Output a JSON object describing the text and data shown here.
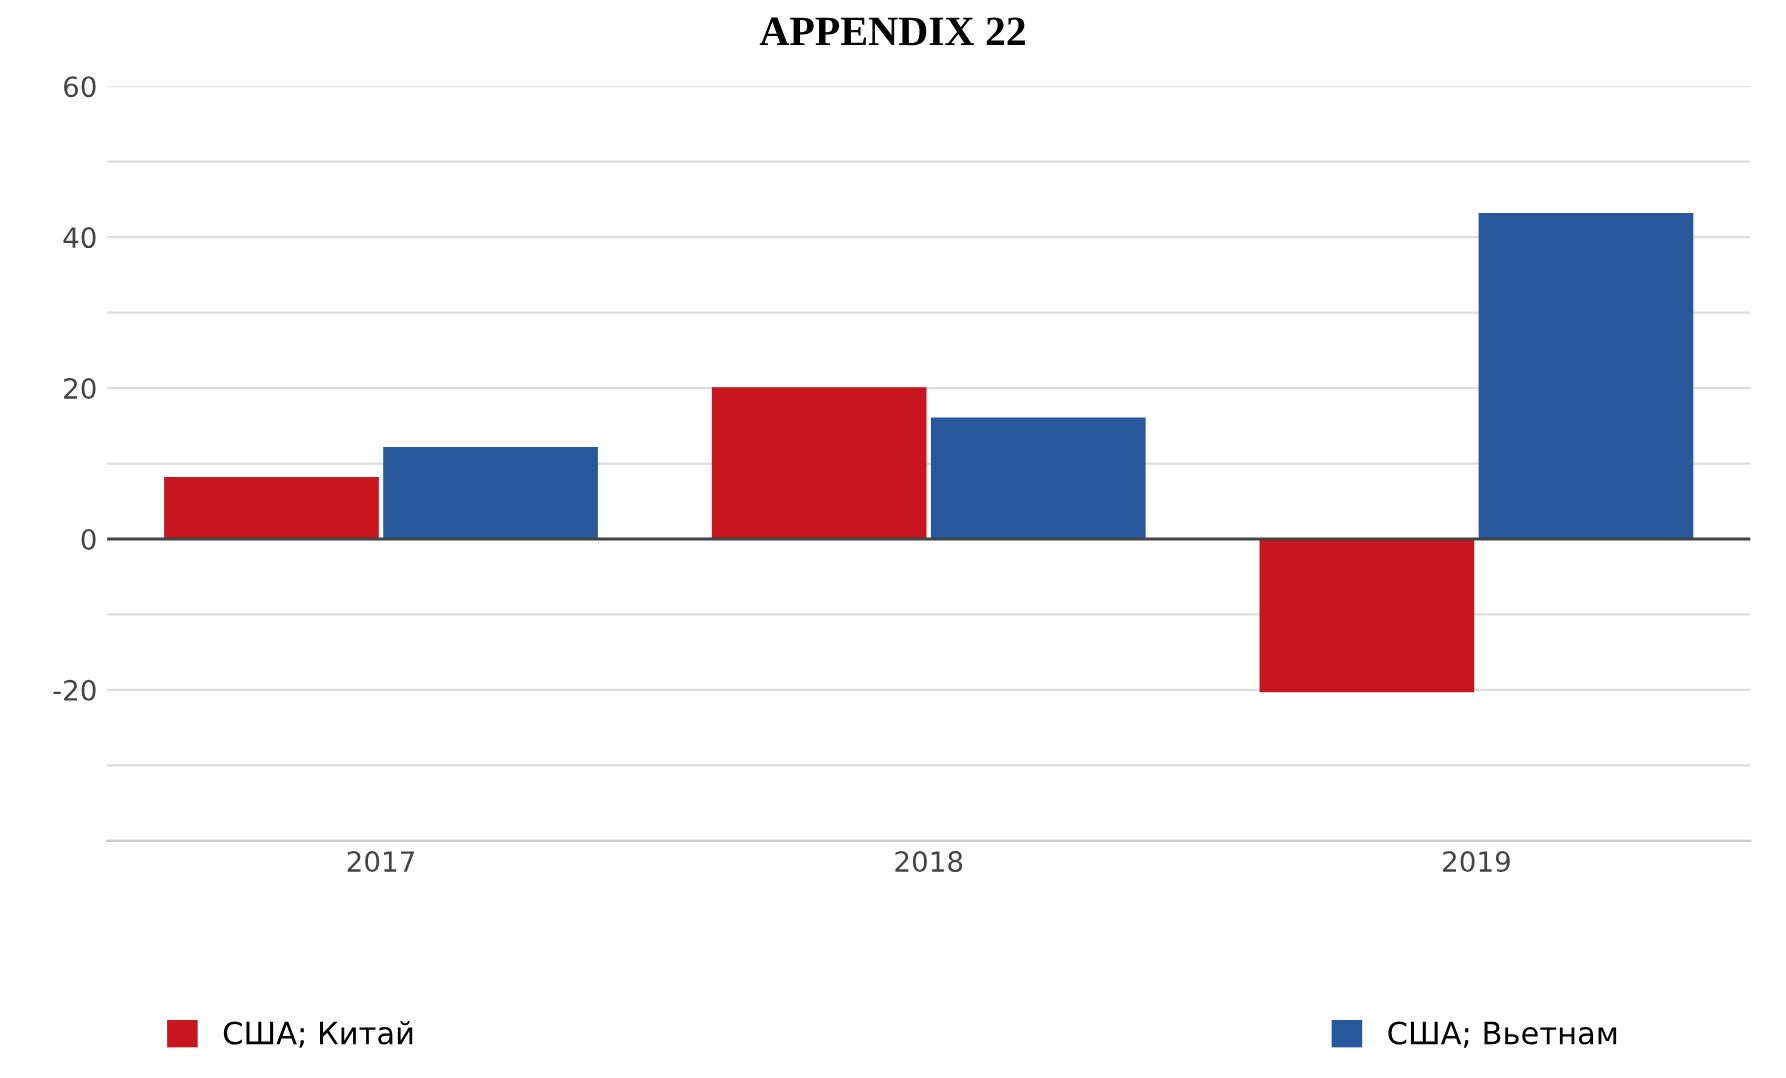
{
  "chart_data": {
    "type": "bar",
    "title": "APPENDIX 22",
    "categories": [
      "2017",
      "2018",
      "2019"
    ],
    "series": [
      {
        "name": "США; Китай",
        "color": "#c8161e",
        "values": [
          8.2,
          20.1,
          -20.3
        ]
      },
      {
        "name": "США; Вьетнам",
        "color": "#27589b",
        "values": [
          12.2,
          16.1,
          43.2
        ]
      }
    ],
    "ylim": [
      -40,
      60
    ],
    "yticks": [
      {
        "value": -40,
        "label": null
      },
      {
        "value": -30,
        "label": null
      },
      -20,
      {
        "value": -10,
        "label": null
      },
      0,
      {
        "value": 10,
        "label": null
      },
      20,
      {
        "value": 30,
        "label": null
      },
      40,
      {
        "value": 50,
        "label": null
      },
      60
    ],
    "grid": "y",
    "legend": "bottom"
  }
}
